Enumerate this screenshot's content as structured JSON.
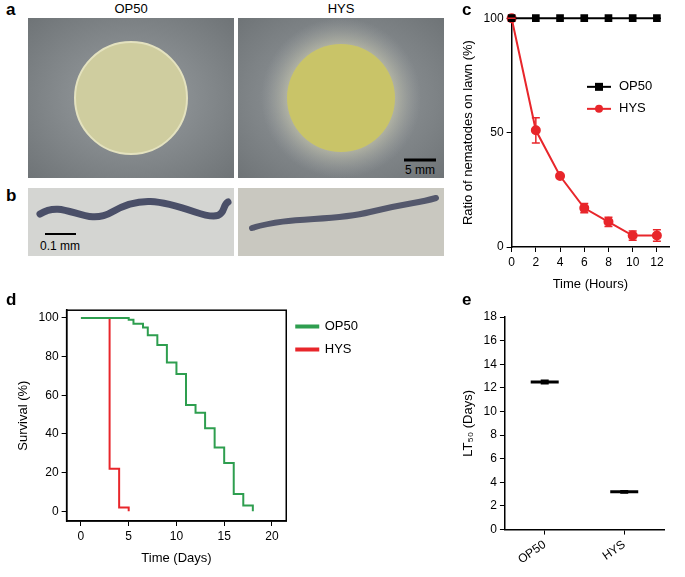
{
  "images": [
    {
      "panel": "a",
      "labels": [
        "OP50",
        "HYS"
      ],
      "scale_bar": "5 mm"
    },
    {
      "panel": "b",
      "scale_bar": "0.1 mm"
    }
  ],
  "chart_data": [
    {
      "panel": "c",
      "type": "line",
      "x_label": "Time (Hours)",
      "y_label": "Ratio of nematodes on lawn (%)",
      "x": [
        0,
        2,
        4,
        6,
        8,
        10,
        12
      ],
      "xlim": [
        0,
        13
      ],
      "xticks": [
        0,
        2,
        4,
        6,
        8,
        10,
        12
      ],
      "ylim": [
        0,
        100
      ],
      "yticks": [
        0,
        50,
        100
      ],
      "grid": false,
      "legend": "right",
      "series": [
        {
          "name": "OP50",
          "color": "#000000",
          "marker": "square",
          "values": [
            100,
            100,
            100,
            100,
            100,
            100,
            100
          ],
          "errors": [
            0,
            0,
            0,
            0,
            0,
            0,
            0
          ]
        },
        {
          "name": "HYS",
          "color": "#e8262b",
          "marker": "circle",
          "values": [
            100,
            51,
            31,
            17,
            11,
            5,
            5
          ],
          "errors": [
            0,
            5.5,
            1,
            2,
            2,
            2,
            2.5
          ]
        }
      ]
    },
    {
      "panel": "d",
      "type": "line",
      "line_style": "step",
      "x_label": "Time (Days)",
      "y_label": "Survival (%)",
      "xlim": [
        -1.5,
        21.5
      ],
      "xticks": [
        0,
        5,
        10,
        15,
        20
      ],
      "ylim": [
        -5,
        104
      ],
      "yticks": [
        0,
        20,
        40,
        60,
        80,
        100
      ],
      "grid": false,
      "legend": "outside right",
      "series": [
        {
          "name": "OP50",
          "color": "#2e9e4f",
          "x": [
            0,
            5,
            5.5,
            6.5,
            7,
            8,
            9,
            10,
            11,
            12,
            13,
            14,
            15,
            16,
            17,
            18
          ],
          "values": [
            100,
            99,
            97,
            95,
            91,
            86,
            77,
            71,
            55,
            51,
            43,
            33,
            25,
            9,
            3,
            0
          ]
        },
        {
          "name": "HYS",
          "color": "#e8262b",
          "x": [
            0,
            3,
            4,
            5
          ],
          "values": [
            100,
            22,
            2,
            0
          ]
        }
      ]
    },
    {
      "panel": "e",
      "type": "dot",
      "marker": "line",
      "color": "#000000",
      "y_label": "LT₅₀ (Days)",
      "categories": [
        "OP50",
        "HYS"
      ],
      "values": [
        12.5,
        3.2
      ],
      "errors": [
        0.15,
        0.1
      ],
      "ylim": [
        0,
        18
      ],
      "yticks": [
        0,
        2,
        4,
        6,
        8,
        10,
        12,
        14,
        16,
        18
      ],
      "grid": false
    }
  ]
}
